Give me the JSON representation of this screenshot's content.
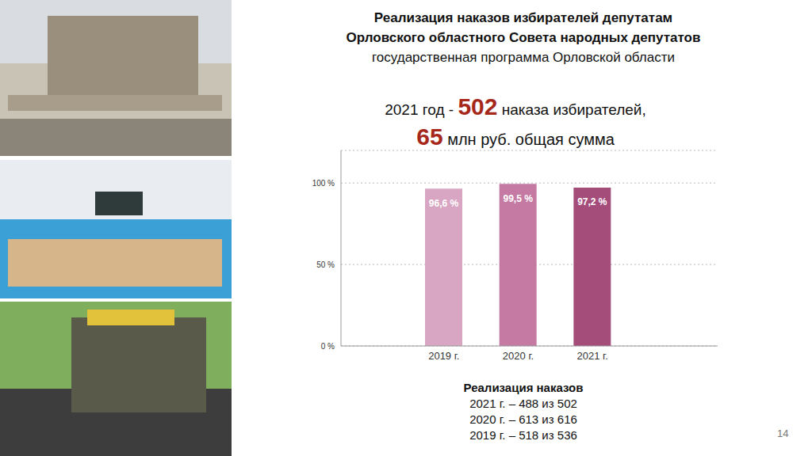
{
  "header": {
    "title": [
      "Реализация наказов избирателей депутатам",
      "Орловского областного Совета народных депутатов"
    ],
    "subtitle": "государственная программа Орловской области"
  },
  "summary": [
    {
      "prefix": "2021 год -",
      "number": 502,
      "text": "наказа избирателей,"
    },
    {
      "number": 65,
      "text": "млн руб. общая сумма"
    }
  ],
  "chart_data": {
    "type": "bar",
    "categories": [
      "2019 г.",
      "2020 г.",
      "2021 г."
    ],
    "values": [
      96.6,
      99.5,
      97.2
    ],
    "value_labels": [
      "96,6 %",
      "99,5 %",
      "97,2 %"
    ],
    "colors": [
      "#d8a6c2",
      "#c57aa3",
      "#a44d7b"
    ],
    "ylim": [
      0,
      120
    ],
    "yticks": [
      {
        "value": 0,
        "label": "0 %"
      },
      {
        "value": 50,
        "label": "50 %"
      },
      {
        "value": 100,
        "label": "100 %"
      }
    ],
    "grid": true,
    "data_labels": true
  },
  "notes": {
    "title": "Реализация наказов",
    "rows": [
      "2021 г. – 488 из 502",
      "2020 г. – 613 из 616",
      "2019 г. – 518 из 536"
    ]
  },
  "page": 14
}
